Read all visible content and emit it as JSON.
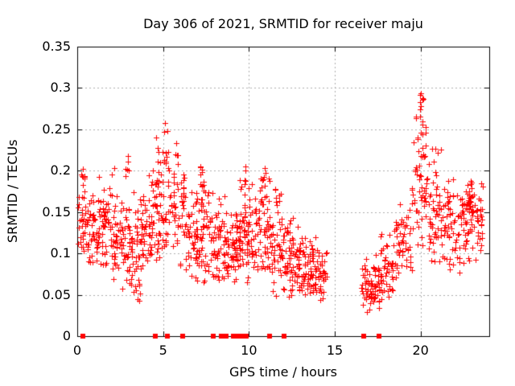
{
  "page": {
    "background": "#ffffff",
    "kind": "gnuplot-style scatter plot image"
  },
  "chart_data": {
    "type": "scatter",
    "title": "Day 306 of 2021, SRMTID for receiver maju",
    "xlabel": "GPS time / hours",
    "ylabel": "SRMTID / TECUs",
    "xlim": [
      0,
      24
    ],
    "ylim": [
      0,
      0.35
    ],
    "xticks": [
      0,
      5,
      10,
      15,
      20
    ],
    "xtick_labels": [
      "0",
      "5",
      "10",
      "15",
      "20"
    ],
    "yticks": [
      0,
      0.05,
      0.1,
      0.15,
      0.2,
      0.25,
      0.3,
      0.35
    ],
    "ytick_labels": [
      "0",
      "0.05",
      "0.1",
      "0.15",
      "0.2",
      "0.25",
      "0.3",
      "0.35"
    ],
    "grid": {
      "show": true,
      "style": "dashed",
      "color": "#adadad",
      "x_gridlines_at": [
        5,
        10,
        15,
        20
      ],
      "y_gridlines_at": [
        0.05,
        0.1,
        0.15,
        0.2,
        0.25,
        0.3
      ]
    },
    "frame_color": "#000000",
    "text_color": "#000000",
    "legend": "none",
    "max_point_approx": {
      "x": 20.0,
      "y": 0.31
    },
    "data_gap_hours": [
      14.6,
      16.55
    ],
    "series": [
      {
        "name": "SRMTID values",
        "marker": "plus",
        "color": "#ff0000",
        "marker_px": 7,
        "point_clusters_format": "[x_start_h, x_end_h, n_points, y_min, y_max, y_mode] - dense scatter summarized as density clusters read from the plot",
        "point_clusters": [
          [
            0.05,
            0.45,
            26,
            0.08,
            0.205,
            0.15
          ],
          [
            0.25,
            0.4,
            8,
            0.09,
            0.215,
            0.16
          ],
          [
            0.45,
            1.2,
            46,
            0.07,
            0.18,
            0.12
          ],
          [
            1.2,
            2.2,
            70,
            0.06,
            0.205,
            0.13
          ],
          [
            2.2,
            3.1,
            58,
            0.05,
            0.18,
            0.12
          ],
          [
            2.8,
            3.0,
            6,
            0.16,
            0.23,
            0.2
          ],
          [
            3.1,
            3.7,
            42,
            0.035,
            0.18,
            0.1
          ],
          [
            3.7,
            4.4,
            50,
            0.07,
            0.21,
            0.13
          ],
          [
            4.4,
            5.6,
            72,
            0.09,
            0.24,
            0.15
          ],
          [
            4.6,
            4.75,
            5,
            0.18,
            0.25,
            0.21
          ],
          [
            5.05,
            5.35,
            9,
            0.19,
            0.262,
            0.225
          ],
          [
            5.6,
            5.9,
            6,
            0.19,
            0.25,
            0.22
          ],
          [
            5.6,
            6.3,
            43,
            0.08,
            0.22,
            0.14
          ],
          [
            6.3,
            7.1,
            55,
            0.06,
            0.185,
            0.11
          ],
          [
            7.1,
            7.8,
            50,
            0.06,
            0.205,
            0.12
          ],
          [
            7.15,
            7.45,
            6,
            0.18,
            0.225,
            0.2
          ],
          [
            7.8,
            8.6,
            55,
            0.05,
            0.185,
            0.1
          ],
          [
            8.6,
            9.3,
            55,
            0.045,
            0.175,
            0.095
          ],
          [
            9.3,
            9.8,
            40,
            0.06,
            0.2,
            0.12
          ],
          [
            9.75,
            9.95,
            6,
            0.16,
            0.22,
            0.19
          ],
          [
            9.8,
            10.6,
            50,
            0.05,
            0.19,
            0.12
          ],
          [
            10.6,
            11.3,
            45,
            0.05,
            0.2,
            0.11
          ],
          [
            10.7,
            11.0,
            8,
            0.15,
            0.22,
            0.18
          ],
          [
            11.3,
            12.0,
            45,
            0.04,
            0.19,
            0.1
          ],
          [
            11.45,
            11.65,
            5,
            0.14,
            0.195,
            0.17
          ],
          [
            12.0,
            13.0,
            75,
            0.04,
            0.145,
            0.08
          ],
          [
            13.0,
            14.55,
            100,
            0.035,
            0.125,
            0.07
          ],
          [
            16.55,
            17.6,
            70,
            0.025,
            0.1,
            0.055
          ],
          [
            17.6,
            18.4,
            45,
            0.04,
            0.13,
            0.085
          ],
          [
            18.4,
            19.5,
            55,
            0.05,
            0.175,
            0.11
          ],
          [
            19.5,
            20.4,
            60,
            0.1,
            0.27,
            0.18
          ],
          [
            19.95,
            20.15,
            12,
            0.24,
            0.315,
            0.27
          ],
          [
            20.4,
            21.3,
            55,
            0.07,
            0.26,
            0.14
          ],
          [
            21.3,
            22.3,
            55,
            0.06,
            0.225,
            0.13
          ],
          [
            22.3,
            23.1,
            55,
            0.07,
            0.21,
            0.145
          ],
          [
            22.7,
            22.95,
            10,
            0.15,
            0.18,
            0.165
          ],
          [
            23.1,
            23.65,
            30,
            0.08,
            0.2,
            0.15
          ]
        ]
      },
      {
        "name": "flag markers on x-axis",
        "marker": "filled-square",
        "color": "#ff0000",
        "marker_px": 6,
        "y": 0,
        "x": [
          0.35,
          4.55,
          5.25,
          6.15,
          7.9,
          8.4,
          8.65,
          9.1,
          9.35,
          9.6,
          9.85,
          11.2,
          12.05,
          16.7,
          17.6
        ]
      }
    ]
  }
}
